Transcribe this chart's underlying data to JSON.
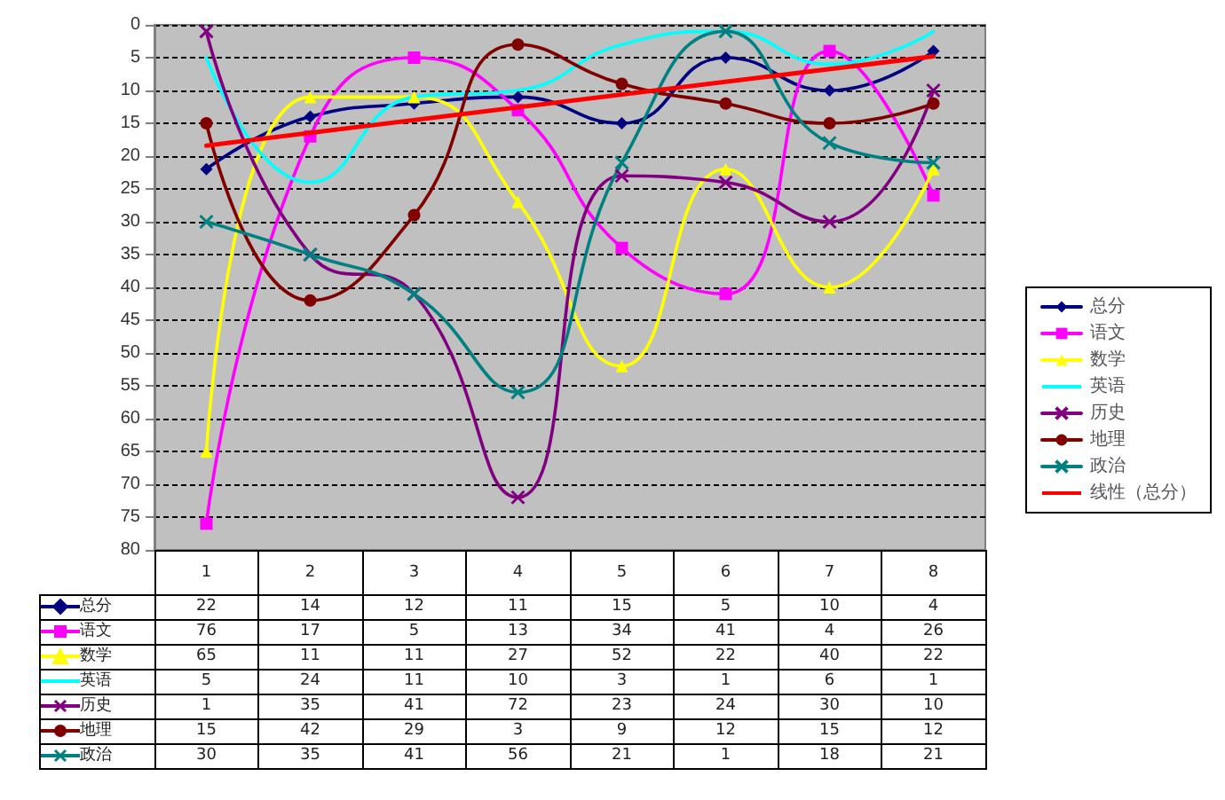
{
  "chart_data": {
    "type": "line",
    "categories": [
      "1",
      "2",
      "3",
      "4",
      "5",
      "6",
      "7",
      "8"
    ],
    "series": [
      {
        "name": "总分",
        "color": "#000080",
        "marker": "diamond",
        "values": [
          22,
          14,
          12,
          11,
          15,
          5,
          10,
          4
        ],
        "value_labels": [
          "22",
          "14",
          "12",
          "11",
          "15",
          "5",
          "10",
          "4"
        ]
      },
      {
        "name": "语文",
        "color": "#ff00ff",
        "marker": "square",
        "values": [
          76,
          17,
          5,
          13,
          34,
          41,
          4,
          26
        ],
        "value_labels": [
          "76",
          "17",
          "5",
          "13",
          "34",
          "41",
          "4",
          "26"
        ]
      },
      {
        "name": "数学",
        "color": "#ffff00",
        "marker": "triangle",
        "values": [
          65,
          11,
          11,
          27,
          52,
          22,
          40,
          22
        ],
        "value_labels": [
          "65",
          "11",
          "11",
          "27",
          "52",
          "22",
          "40",
          "22"
        ]
      },
      {
        "name": "英语",
        "color": "#00ffff",
        "marker": "none",
        "values": [
          5,
          24,
          11,
          10,
          3,
          1,
          6,
          1
        ],
        "value_labels": [
          "5",
          "24",
          "11",
          "10",
          "3",
          "1",
          "6",
          "1"
        ]
      },
      {
        "name": "历史",
        "color": "#800080",
        "marker": "cross",
        "values": [
          1,
          35,
          41,
          72,
          23,
          24,
          30,
          10
        ],
        "value_labels": [
          "1",
          "35",
          "41",
          "72",
          "23",
          "24",
          "30",
          "10"
        ]
      },
      {
        "name": "地理",
        "color": "#800000",
        "marker": "circle",
        "values": [
          15,
          42,
          29,
          3,
          9,
          12,
          15,
          12
        ],
        "value_labels": [
          "15",
          "42",
          "29",
          "3",
          "9",
          "12",
          "15",
          "12"
        ]
      },
      {
        "name": "政治",
        "color": "#008080",
        "marker": "cross",
        "values": [
          30,
          35,
          41,
          56,
          21,
          1,
          18,
          21
        ],
        "value_labels": [
          "30",
          "35",
          "41",
          "56",
          "21",
          "1",
          "18",
          "21"
        ]
      },
      {
        "name": "线性（总分）",
        "color": "#ff0000",
        "marker": "none",
        "x": [
          "1",
          "8"
        ],
        "values": [
          18.4,
          4.8
        ]
      }
    ],
    "ylim": [
      80,
      0
    ],
    "yticks": [
      0,
      5,
      10,
      15,
      20,
      25,
      30,
      35,
      40,
      45,
      50,
      55,
      60,
      65,
      70,
      75,
      80
    ],
    "grid": "y",
    "legend": "right"
  }
}
